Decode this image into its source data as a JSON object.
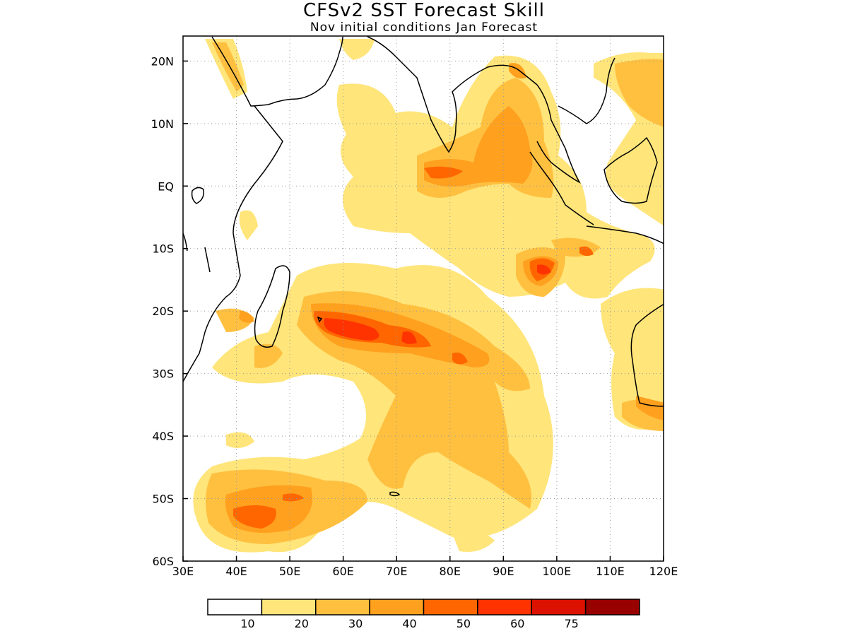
{
  "header": {
    "title": "CFSv2 SST Forecast Skill",
    "subtitle": "Nov initial conditions  Jan Forecast"
  },
  "map": {
    "lon_range": [
      30,
      120
    ],
    "lat_range": [
      -60,
      24
    ],
    "lon_ticks": [
      {
        "value": 30,
        "label": "30E"
      },
      {
        "value": 40,
        "label": "40E"
      },
      {
        "value": 50,
        "label": "50E"
      },
      {
        "value": 60,
        "label": "60E"
      },
      {
        "value": 70,
        "label": "70E"
      },
      {
        "value": 80,
        "label": "80E"
      },
      {
        "value": 90,
        "label": "90E"
      },
      {
        "value": 100,
        "label": "100E"
      },
      {
        "value": 110,
        "label": "110E"
      },
      {
        "value": 120,
        "label": "120E"
      }
    ],
    "lat_ticks": [
      {
        "value": 20,
        "label": "20N"
      },
      {
        "value": 10,
        "label": "10N"
      },
      {
        "value": 0,
        "label": "EQ"
      },
      {
        "value": -10,
        "label": "10S"
      },
      {
        "value": -20,
        "label": "20S"
      },
      {
        "value": -30,
        "label": "30S"
      },
      {
        "value": -40,
        "label": "40S"
      },
      {
        "value": -50,
        "label": "50S"
      },
      {
        "value": -60,
        "label": "60S"
      }
    ],
    "gridlines": "dotted"
  },
  "colorbar": {
    "colors": [
      "#ffffff",
      "#ffe57a",
      "#ffc040",
      "#ffa01e",
      "#ff6600",
      "#ff3300",
      "#dd1100",
      "#990000"
    ],
    "labels": [
      "10",
      "20",
      "30",
      "40",
      "50",
      "60",
      "75"
    ]
  }
}
